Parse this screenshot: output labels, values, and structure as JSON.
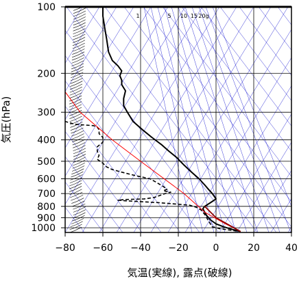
{
  "chart_data": {
    "type": "line",
    "xlabel": "気温(実線), 露点(破線)",
    "ylabel": "気圧(hPa)",
    "xlim": [
      -80,
      40
    ],
    "ylim": [
      1050,
      100
    ],
    "y_scale": "log",
    "x_ticks": [
      -80,
      -60,
      -40,
      -20,
      0,
      20,
      40
    ],
    "y_ticks": [
      100,
      200,
      300,
      400,
      500,
      600,
      700,
      800,
      900,
      1000
    ],
    "mixing_ratio_labels": [
      "1",
      "5",
      "10",
      "15",
      "20g"
    ],
    "series": [
      {
        "style": "solid-black",
        "points": [
          [
            1040,
            13
          ],
          [
            1020,
            9
          ],
          [
            990,
            4
          ],
          [
            960,
            0
          ],
          [
            920,
            -3
          ],
          [
            880,
            -5
          ],
          [
            850,
            -6
          ],
          [
            820,
            -7
          ],
          [
            800,
            -6
          ],
          [
            770,
            -3
          ],
          [
            740,
            0
          ],
          [
            720,
            -1
          ],
          [
            700,
            -2
          ],
          [
            670,
            -4
          ],
          [
            640,
            -6
          ],
          [
            600,
            -9
          ],
          [
            560,
            -13
          ],
          [
            520,
            -17
          ],
          [
            480,
            -21
          ],
          [
            450,
            -25
          ],
          [
            420,
            -29
          ],
          [
            390,
            -34
          ],
          [
            360,
            -39
          ],
          [
            330,
            -44
          ],
          [
            300,
            -47
          ],
          [
            280,
            -49
          ],
          [
            260,
            -49
          ],
          [
            240,
            -48
          ],
          [
            225,
            -50
          ],
          [
            215,
            -50
          ],
          [
            205,
            -51
          ],
          [
            195,
            -50
          ],
          [
            185,
            -52
          ],
          [
            175,
            -55
          ],
          [
            160,
            -57
          ],
          [
            140,
            -58
          ],
          [
            125,
            -59
          ],
          [
            110,
            -60
          ],
          [
            100,
            -60
          ]
        ]
      },
      {
        "style": "dashed-black",
        "points": [
          [
            1035,
            11
          ],
          [
            1010,
            2
          ],
          [
            990,
            -2
          ],
          [
            960,
            -3
          ],
          [
            930,
            -4
          ],
          [
            900,
            -5
          ],
          [
            870,
            -6
          ],
          [
            850,
            -7
          ],
          [
            830,
            -8
          ],
          [
            810,
            -10
          ],
          [
            790,
            -14
          ],
          [
            780,
            -22
          ],
          [
            770,
            -30
          ],
          [
            760,
            -42
          ],
          [
            755,
            -48
          ],
          [
            750,
            -52
          ],
          [
            745,
            -48
          ],
          [
            740,
            -38
          ],
          [
            730,
            -33
          ],
          [
            715,
            -30
          ],
          [
            700,
            -27
          ],
          [
            690,
            -24
          ],
          [
            680,
            -28
          ],
          [
            670,
            -26
          ],
          [
            650,
            -28
          ],
          [
            620,
            -32
          ],
          [
            600,
            -35
          ],
          [
            580,
            -43
          ],
          [
            560,
            -50
          ],
          [
            545,
            -55
          ],
          [
            530,
            -58
          ],
          [
            510,
            -60
          ],
          [
            490,
            -63
          ],
          [
            470,
            -62
          ],
          [
            450,
            -63
          ],
          [
            430,
            -63
          ],
          [
            410,
            -60
          ],
          [
            390,
            -60
          ],
          [
            375,
            -62
          ],
          [
            360,
            -62
          ],
          [
            350,
            -63
          ],
          [
            345,
            -65
          ],
          [
            340,
            -75
          ],
          [
            330,
            -80
          ]
        ]
      },
      {
        "style": "solid-red",
        "points": [
          [
            1040,
            13
          ],
          [
            950,
            4
          ],
          [
            850,
            -6
          ],
          [
            700,
            -17
          ],
          [
            500,
            -40
          ],
          [
            400,
            -55
          ],
          [
            300,
            -72
          ],
          [
            230,
            -82
          ]
        ]
      },
      {
        "style": "solid-darkred",
        "points": [
          [
            1040,
            13
          ],
          [
            900,
            0
          ],
          [
            800,
            -6
          ]
        ]
      }
    ],
    "colors": {
      "temperature": "#000000",
      "dewpoint": "#000000",
      "parcel": "#ff0000",
      "parcel_lower": "#8b0000",
      "isotherms": "#0000cc",
      "grid": "#000000"
    },
    "grid": true
  }
}
